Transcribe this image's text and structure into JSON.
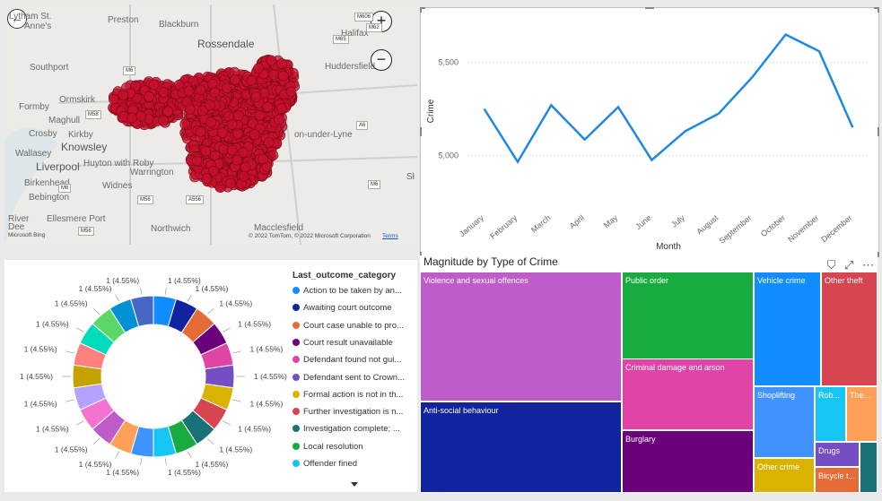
{
  "map": {
    "places": [
      {
        "name": "Lytham St.",
        "big": false
      },
      {
        "name": "Anne's",
        "big": false
      },
      {
        "name": "Preston",
        "big": false
      },
      {
        "name": "Blackburn",
        "big": false
      },
      {
        "name": "Rossendale",
        "big": true
      },
      {
        "name": "Halifax",
        "big": false
      },
      {
        "name": "Huddersfield",
        "big": false
      },
      {
        "name": "Southport",
        "big": false
      },
      {
        "name": "Ormskirk",
        "big": false
      },
      {
        "name": "Formby",
        "big": false
      },
      {
        "name": "Maghull",
        "big": false
      },
      {
        "name": "Crosby",
        "big": false
      },
      {
        "name": "Kirkby",
        "big": false
      },
      {
        "name": "Knowsley",
        "big": true
      },
      {
        "name": "Wallasey",
        "big": false
      },
      {
        "name": "Liverpool",
        "big": true
      },
      {
        "name": "Huyton with Roby",
        "big": false
      },
      {
        "name": "Warrington",
        "big": false
      },
      {
        "name": "Birkenhead",
        "big": false
      },
      {
        "name": "Widnes",
        "big": false
      },
      {
        "name": "Bebington",
        "big": false
      },
      {
        "name": "Ellesmere Port",
        "big": false
      },
      {
        "name": "Northwich",
        "big": false
      },
      {
        "name": "Macclesfield",
        "big": false
      },
      {
        "name": "on-under-Lyne",
        "big": false
      },
      {
        "name": "River",
        "big": false
      },
      {
        "name": "Dee",
        "big": false
      },
      {
        "name": "Sł",
        "big": false
      }
    ],
    "roads": [
      "M606",
      "M65",
      "M6",
      "M58",
      "M6",
      "M56",
      "A556",
      "M56",
      "M6",
      "M62",
      "A6"
    ],
    "attribution": "© 2022 TomTom, © 2022 Microsoft Corporation",
    "terms": "Terms",
    "bing": "Microsoft Bing",
    "zoom_in": "+",
    "zoom_out": "−",
    "back": "←",
    "dot_color": "#c8102e"
  },
  "line_chart": {
    "xlabel": "Month",
    "ylabel": "Crime",
    "color": "#1e88e5",
    "chart_data": {
      "type": "line",
      "categories": [
        "January",
        "February",
        "March",
        "April",
        "May",
        "June",
        "July",
        "August",
        "September",
        "October",
        "November",
        "December"
      ],
      "values": [
        5250,
        4965,
        5270,
        5085,
        5260,
        4975,
        5130,
        5225,
        5420,
        5650,
        5560,
        5150
      ],
      "ylim": [
        4780,
        5720
      ],
      "yticks": [
        5000,
        5500
      ],
      "ytick_labels": [
        "5,000",
        "5,500"
      ]
    }
  },
  "donut": {
    "legend_title": "Last_outcome_category",
    "legend": [
      {
        "label": "Action to be taken by an...",
        "color": "#118dff"
      },
      {
        "label": "Awaiting court outcome",
        "color": "#12239e"
      },
      {
        "label": "Court case unable to pro...",
        "color": "#e66c37"
      },
      {
        "label": "Court result unavailable",
        "color": "#6b007b"
      },
      {
        "label": "Defendant found not gui...",
        "color": "#e044a7"
      },
      {
        "label": "Defendant sent to Crown...",
        "color": "#744ec2"
      },
      {
        "label": "Formal action is not in th...",
        "color": "#d9b300"
      },
      {
        "label": "Further investigation is n...",
        "color": "#d64550"
      },
      {
        "label": "Investigation complete; ...",
        "color": "#197278"
      },
      {
        "label": "Local resolution",
        "color": "#1aab40"
      },
      {
        "label": "Offender fined",
        "color": "#15c6f4"
      }
    ],
    "chart_data": {
      "type": "pie",
      "slice_value": 1,
      "slice_label": "1 (4.55%)",
      "count": 22,
      "colors": [
        "#118dff",
        "#12239e",
        "#e66c37",
        "#6b007b",
        "#e044a7",
        "#744ec2",
        "#d9b300",
        "#d64550",
        "#197278",
        "#1aab40",
        "#15c6f4",
        "#4092ff",
        "#ffa058",
        "#be5dc9",
        "#f472d0",
        "#b5a1ff",
        "#c4a200",
        "#ff8080",
        "#00dbbc",
        "#5bd667",
        "#0091d5",
        "#4668c5"
      ]
    }
  },
  "treemap": {
    "title": "Magnitude by Type of Crime",
    "tiles": [
      {
        "label": "Violence and sexual offences",
        "color": "#be5dc9"
      },
      {
        "label": "Anti-social behaviour",
        "color": "#12239e"
      },
      {
        "label": "Public order",
        "color": "#1aab40"
      },
      {
        "label": "Criminal damage and arson",
        "color": "#e044a7"
      },
      {
        "label": "Burglary",
        "color": "#6b007b"
      },
      {
        "label": "Vehicle crime",
        "color": "#118dff"
      },
      {
        "label": "Other theft",
        "color": "#d64550"
      },
      {
        "label": "Shoplifting",
        "color": "#4092ff"
      },
      {
        "label": "Rob...",
        "color": "#15c6f4"
      },
      {
        "label": "The...",
        "color": "#ffa058"
      },
      {
        "label": "Other crime",
        "color": "#d9b300"
      },
      {
        "label": "Drugs",
        "color": "#744ec2"
      },
      {
        "label": "Bicycle t...",
        "color": "#e66c37"
      },
      {
        "label": "",
        "color": "#197278"
      }
    ],
    "icons": {
      "filter": "⛉",
      "focus": "⤢",
      "more": "⋯"
    }
  }
}
